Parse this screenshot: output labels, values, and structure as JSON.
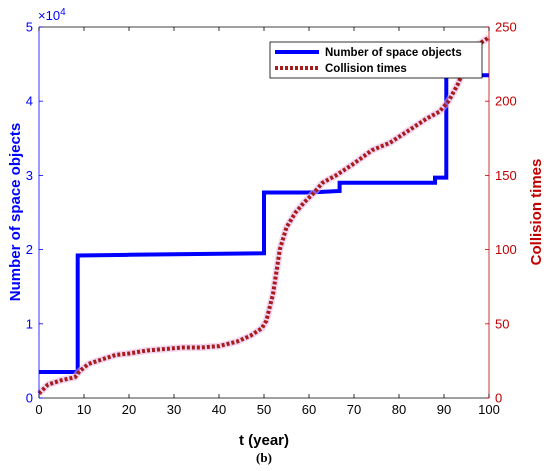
{
  "chart_data": {
    "type": "line",
    "x_axis": {
      "label": "t (year)",
      "range": [
        0,
        100
      ],
      "ticks": [
        0,
        10,
        20,
        30,
        40,
        50,
        60,
        70,
        80,
        90,
        100
      ],
      "tick_labels": [
        "0",
        "10",
        "20",
        "30",
        "40",
        "50",
        "60",
        "70",
        "80",
        "90",
        "100"
      ]
    },
    "y_left": {
      "label": "Number of space objects",
      "range": [
        0,
        50000
      ],
      "ticks": [
        0,
        10000,
        20000,
        30000,
        40000,
        50000
      ],
      "tick_labels": [
        "0",
        "1",
        "2",
        "3",
        "4",
        "5"
      ],
      "exponent_label": "×10",
      "exponent_power": "4",
      "color": "#0000ff"
    },
    "y_right": {
      "label": "Collision times",
      "range": [
        0,
        250
      ],
      "ticks": [
        0,
        50,
        100,
        150,
        200,
        250
      ],
      "tick_labels": [
        "0",
        "50",
        "100",
        "150",
        "200",
        "250"
      ],
      "color": "#c00000"
    },
    "grid": false,
    "legend_position": "top-right",
    "caption": "(b)",
    "series": [
      {
        "name": "Number of space objects",
        "axis": "left",
        "style": "solid",
        "color": "#0000ff",
        "points": [
          [
            0,
            3500
          ],
          [
            8.6,
            3500
          ],
          [
            8.6,
            19200
          ],
          [
            20,
            19300
          ],
          [
            50,
            19500
          ],
          [
            50,
            27700
          ],
          [
            60,
            27700
          ],
          [
            66.8,
            27900
          ],
          [
            66.8,
            29000
          ],
          [
            88,
            29000
          ],
          [
            88,
            29700
          ],
          [
            90.5,
            29700
          ],
          [
            90.5,
            43500
          ],
          [
            100,
            43500
          ]
        ]
      },
      {
        "name": "Collision times",
        "axis": "right",
        "style": "dotted",
        "color": "#a81c1c",
        "points": [
          [
            0,
            3
          ],
          [
            2,
            9
          ],
          [
            5,
            12
          ],
          [
            8,
            14
          ],
          [
            9,
            18
          ],
          [
            11,
            23
          ],
          [
            14,
            26
          ],
          [
            17,
            29
          ],
          [
            20,
            30
          ],
          [
            24,
            32
          ],
          [
            28,
            33
          ],
          [
            32,
            34
          ],
          [
            36,
            34
          ],
          [
            40,
            35
          ],
          [
            44,
            38
          ],
          [
            47,
            42
          ],
          [
            49.5,
            47
          ],
          [
            50.5,
            52
          ],
          [
            52,
            70
          ],
          [
            53.5,
            100
          ],
          [
            55,
            115
          ],
          [
            57,
            125
          ],
          [
            59,
            132
          ],
          [
            61,
            138
          ],
          [
            63,
            145
          ],
          [
            66,
            150
          ],
          [
            70,
            158
          ],
          [
            74,
            167
          ],
          [
            78,
            172
          ],
          [
            82,
            180
          ],
          [
            86,
            188
          ],
          [
            89,
            193
          ],
          [
            91,
            200
          ],
          [
            93,
            211
          ],
          [
            95,
            225
          ],
          [
            97,
            237
          ],
          [
            100,
            243
          ]
        ]
      }
    ]
  }
}
